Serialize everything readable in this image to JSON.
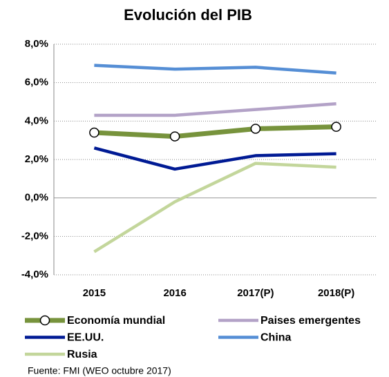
{
  "chart_data": {
    "type": "line",
    "title": "Evolución del PIB",
    "categories": [
      "2015",
      "2016",
      "2017(P)",
      "2018(P)"
    ],
    "series": [
      {
        "name": "Economía mundial",
        "color": "#77933c",
        "values": [
          3.4,
          3.2,
          3.6,
          3.7
        ],
        "marker": true
      },
      {
        "name": "Paises emergentes",
        "color": "#b3a2c7",
        "values": [
          4.3,
          4.3,
          4.6,
          4.9
        ]
      },
      {
        "name": "EE.UU.",
        "color": "#001a94",
        "values": [
          2.6,
          1.5,
          2.2,
          2.3
        ]
      },
      {
        "name": "China",
        "color": "#558ed5",
        "values": [
          6.9,
          6.7,
          6.8,
          6.5
        ]
      },
      {
        "name": "Rusia",
        "color": "#c3d69b",
        "values": [
          -2.8,
          -0.2,
          1.8,
          1.6
        ]
      }
    ],
    "ylim": [
      -4,
      8
    ],
    "yticks": [
      {
        "value": 8,
        "label": "8,0%"
      },
      {
        "value": 6,
        "label": "6,0%"
      },
      {
        "value": 4,
        "label": "4,0%"
      },
      {
        "value": 2,
        "label": "2,0%"
      },
      {
        "value": 0,
        "label": "0,0%"
      },
      {
        "value": -2,
        "label": "-2,0%"
      },
      {
        "value": -4,
        "label": "-4,0%"
      }
    ],
    "grid": true,
    "legend": "bottom",
    "source": "Fuente: FMI (WEO octubre 2017)"
  }
}
